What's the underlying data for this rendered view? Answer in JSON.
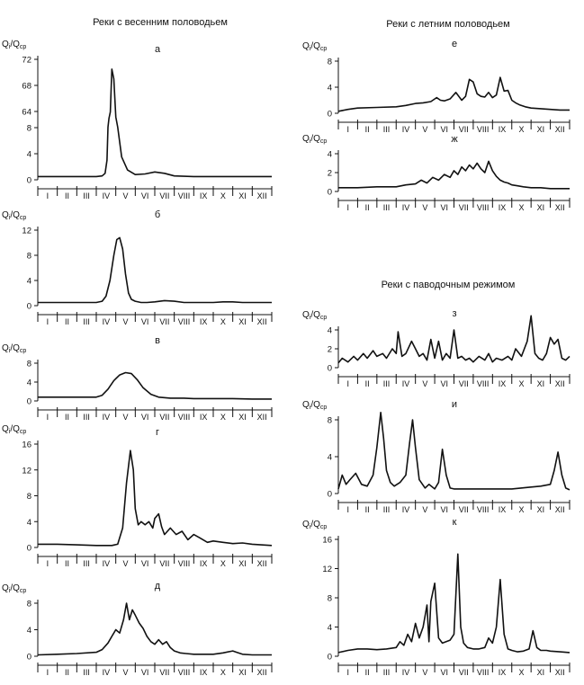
{
  "headers": {
    "left": "Реки с весенним половодьем",
    "right_top": "Реки с летним половодьем",
    "right_bottom": "Реки с паводочным режимом"
  },
  "ylabel": {
    "main": "Q",
    "sub1": "i",
    "slash": "/Q",
    "sub2": "ср"
  },
  "months": [
    "I",
    "II",
    "III",
    "IV",
    "V",
    "VI",
    "VII",
    "VIII",
    "IX",
    "X",
    "XI",
    "XII"
  ],
  "chart_data": [
    {
      "id": "a",
      "label": "а",
      "type": "line",
      "xlim": [
        0,
        12
      ],
      "ylim": [
        0,
        72
      ],
      "yticks": [
        0,
        4,
        8,
        64,
        68,
        72
      ],
      "broken_axis": true,
      "x": [
        0,
        1,
        2,
        3,
        3.3,
        3.45,
        3.55,
        3.6,
        3.65,
        3.72,
        3.8,
        3.9,
        4.0,
        4.1,
        4.3,
        4.6,
        5.0,
        5.5,
        6.0,
        6.5,
        7.0,
        8.0,
        9.0,
        10.0,
        11.0,
        12.0
      ],
      "y": [
        0.5,
        0.5,
        0.5,
        0.5,
        0.6,
        1.0,
        3.0,
        10.0,
        40.0,
        62.0,
        70.5,
        69.0,
        45.0,
        10.0,
        3.5,
        1.5,
        0.8,
        0.9,
        1.2,
        1.0,
        0.6,
        0.5,
        0.5,
        0.5,
        0.5,
        0.5
      ]
    },
    {
      "id": "b",
      "label": "б",
      "type": "line",
      "xlim": [
        0,
        12
      ],
      "ylim": [
        0,
        12
      ],
      "yticks": [
        0,
        4,
        8,
        12
      ],
      "x": [
        0,
        1,
        2,
        3,
        3.3,
        3.5,
        3.7,
        3.9,
        4.05,
        4.2,
        4.35,
        4.5,
        4.65,
        4.8,
        5.0,
        5.3,
        5.6,
        6.0,
        6.5,
        7.0,
        7.5,
        8.0,
        9.0,
        9.5,
        10.0,
        10.5,
        11.0,
        11.5,
        12.0
      ],
      "y": [
        0.5,
        0.5,
        0.5,
        0.5,
        0.7,
        1.5,
        4.0,
        8.0,
        10.5,
        10.8,
        9.0,
        5.0,
        2.0,
        1.0,
        0.7,
        0.5,
        0.5,
        0.6,
        0.8,
        0.7,
        0.5,
        0.5,
        0.5,
        0.6,
        0.6,
        0.5,
        0.5,
        0.5,
        0.5
      ]
    },
    {
      "id": "v",
      "label": "в",
      "type": "line",
      "xlim": [
        0,
        12
      ],
      "ylim": [
        0,
        8
      ],
      "yticks": [
        0,
        4,
        8
      ],
      "x": [
        0,
        1,
        2,
        3,
        3.3,
        3.6,
        3.9,
        4.2,
        4.5,
        4.8,
        5.1,
        5.4,
        5.8,
        6.2,
        6.8,
        7.5,
        8.0,
        9.0,
        10.0,
        11.0,
        12.0
      ],
      "y": [
        0.8,
        0.8,
        0.8,
        0.8,
        1.2,
        2.5,
        4.3,
        5.5,
        6.0,
        5.8,
        4.5,
        2.8,
        1.4,
        0.8,
        0.6,
        0.6,
        0.5,
        0.5,
        0.5,
        0.4,
        0.4
      ]
    },
    {
      "id": "g",
      "label": "г",
      "type": "line",
      "xlim": [
        0,
        12
      ],
      "ylim": [
        0,
        16
      ],
      "yticks": [
        0,
        4,
        8,
        12,
        16
      ],
      "x": [
        0,
        1,
        2,
        3,
        3.8,
        4.1,
        4.35,
        4.55,
        4.75,
        4.9,
        5.0,
        5.15,
        5.3,
        5.5,
        5.7,
        5.9,
        6.0,
        6.2,
        6.35,
        6.5,
        6.8,
        7.1,
        7.4,
        7.7,
        8.0,
        8.3,
        8.7,
        9.0,
        9.5,
        10.0,
        10.5,
        11.0,
        12.0
      ],
      "y": [
        0.5,
        0.5,
        0.4,
        0.3,
        0.3,
        0.5,
        3.0,
        10.0,
        15.0,
        12.0,
        6.0,
        3.5,
        4.0,
        3.5,
        4.0,
        3.0,
        4.5,
        5.2,
        3.2,
        2.0,
        3.0,
        2.0,
        2.5,
        1.2,
        2.0,
        1.5,
        0.8,
        1.0,
        0.8,
        0.6,
        0.7,
        0.5,
        0.3
      ]
    },
    {
      "id": "d",
      "label": "д",
      "type": "line",
      "xlim": [
        0,
        12
      ],
      "ylim": [
        0,
        8
      ],
      "yticks": [
        0,
        4,
        8
      ],
      "x": [
        0,
        1,
        2,
        3,
        3.3,
        3.6,
        3.8,
        4.0,
        4.2,
        4.4,
        4.55,
        4.7,
        4.85,
        5.0,
        5.2,
        5.4,
        5.6,
        5.8,
        6.0,
        6.2,
        6.4,
        6.6,
        6.8,
        7.0,
        7.3,
        7.6,
        8.0,
        9.0,
        9.5,
        10.0,
        10.2,
        10.5,
        11.0,
        12.0
      ],
      "y": [
        0.2,
        0.3,
        0.4,
        0.6,
        1.0,
        2.0,
        3.0,
        4.0,
        3.5,
        5.5,
        8.0,
        5.5,
        7.0,
        6.2,
        5.0,
        4.2,
        3.0,
        2.2,
        1.8,
        2.5,
        1.8,
        2.2,
        1.3,
        0.8,
        0.5,
        0.4,
        0.3,
        0.3,
        0.5,
        0.8,
        0.6,
        0.3,
        0.2,
        0.2
      ]
    },
    {
      "id": "e",
      "label": "е",
      "type": "line",
      "xlim": [
        0,
        12
      ],
      "ylim": [
        0,
        8
      ],
      "yticks": [
        0,
        4,
        8
      ],
      "x": [
        0,
        0.5,
        1,
        2,
        3,
        3.5,
        4,
        4.4,
        4.8,
        5.1,
        5.3,
        5.5,
        5.8,
        6.1,
        6.4,
        6.6,
        6.8,
        7.0,
        7.2,
        7.4,
        7.6,
        7.8,
        8.0,
        8.2,
        8.4,
        8.6,
        8.8,
        9.0,
        9.2,
        9.4,
        9.7,
        10.0,
        10.5,
        11.0,
        11.5,
        12.0
      ],
      "y": [
        0.3,
        0.6,
        0.8,
        0.9,
        1.0,
        1.2,
        1.5,
        1.6,
        1.8,
        2.4,
        2.0,
        1.9,
        2.2,
        3.2,
        2.0,
        2.6,
        5.2,
        4.8,
        3.0,
        2.6,
        2.5,
        3.2,
        2.4,
        2.8,
        5.5,
        3.4,
        3.5,
        2.0,
        1.6,
        1.3,
        1.0,
        0.8,
        0.7,
        0.6,
        0.5,
        0.5
      ]
    },
    {
      "id": "zh",
      "label": "ж",
      "type": "line",
      "xlim": [
        0,
        12
      ],
      "ylim": [
        0,
        4
      ],
      "yticks": [
        0,
        2,
        4
      ],
      "x": [
        0,
        1,
        2,
        3,
        3.5,
        4,
        4.3,
        4.6,
        4.9,
        5.2,
        5.5,
        5.8,
        6.0,
        6.2,
        6.4,
        6.6,
        6.8,
        7.0,
        7.2,
        7.4,
        7.6,
        7.8,
        8.0,
        8.2,
        8.4,
        8.6,
        8.8,
        9.0,
        9.3,
        9.6,
        10,
        10.5,
        11,
        11.5,
        12
      ],
      "y": [
        0.4,
        0.4,
        0.5,
        0.5,
        0.7,
        0.8,
        1.2,
        0.9,
        1.5,
        1.2,
        1.8,
        1.5,
        2.2,
        1.8,
        2.6,
        2.2,
        2.8,
        2.4,
        3.0,
        2.4,
        2.0,
        3.2,
        2.2,
        1.6,
        1.2,
        1.0,
        0.9,
        0.7,
        0.6,
        0.5,
        0.4,
        0.4,
        0.3,
        0.3,
        0.3
      ]
    },
    {
      "id": "z",
      "label": "з",
      "type": "line",
      "xlim": [
        0,
        12
      ],
      "ylim": [
        0,
        4
      ],
      "yticks": [
        0,
        2,
        4
      ],
      "x": [
        0,
        0.2,
        0.5,
        0.8,
        1.0,
        1.3,
        1.5,
        1.8,
        2.0,
        2.3,
        2.5,
        2.8,
        3.0,
        3.1,
        3.3,
        3.5,
        3.8,
        4.0,
        4.2,
        4.4,
        4.6,
        4.8,
        5.0,
        5.2,
        5.4,
        5.6,
        5.8,
        6.0,
        6.2,
        6.4,
        6.6,
        6.8,
        7.0,
        7.3,
        7.6,
        7.8,
        8.0,
        8.2,
        8.5,
        8.8,
        9.0,
        9.2,
        9.5,
        9.8,
        10.0,
        10.2,
        10.4,
        10.6,
        10.8,
        11.0,
        11.2,
        11.4,
        11.6,
        11.8,
        12.0
      ],
      "y": [
        0.5,
        1.0,
        0.6,
        1.2,
        0.8,
        1.5,
        1.0,
        1.8,
        1.2,
        1.5,
        1.0,
        2.0,
        1.5,
        3.8,
        1.2,
        1.5,
        2.8,
        2.0,
        1.2,
        1.5,
        0.8,
        3.0,
        1.0,
        2.8,
        0.8,
        1.5,
        1.0,
        4.0,
        1.0,
        1.2,
        0.8,
        1.0,
        0.6,
        1.2,
        0.8,
        1.5,
        0.6,
        1.0,
        0.8,
        1.2,
        0.8,
        2.0,
        1.2,
        2.8,
        5.5,
        1.5,
        1.0,
        0.8,
        1.5,
        3.2,
        2.5,
        3.0,
        1.0,
        0.8,
        1.2
      ]
    },
    {
      "id": "i",
      "label": "и",
      "type": "line",
      "xlim": [
        0,
        12
      ],
      "ylim": [
        0,
        8
      ],
      "yticks": [
        0,
        4,
        8
      ],
      "x": [
        0,
        0.2,
        0.4,
        0.6,
        0.9,
        1.2,
        1.5,
        1.8,
        2.0,
        2.2,
        2.35,
        2.5,
        2.7,
        2.9,
        3.2,
        3.5,
        3.7,
        3.85,
        4.0,
        4.2,
        4.5,
        4.7,
        5.0,
        5.2,
        5.4,
        5.6,
        5.8,
        6.0,
        6.5,
        7.0,
        8.0,
        9.0,
        10.0,
        10.5,
        11.0,
        11.2,
        11.4,
        11.6,
        11.8,
        12.0
      ],
      "y": [
        0.5,
        2.0,
        1.0,
        1.5,
        2.2,
        1.0,
        0.8,
        2.0,
        5.0,
        8.8,
        6.0,
        2.5,
        1.2,
        0.8,
        1.2,
        2.0,
        5.5,
        8.0,
        5.0,
        1.5,
        0.6,
        1.0,
        0.5,
        1.2,
        4.8,
        2.0,
        0.6,
        0.5,
        0.5,
        0.5,
        0.5,
        0.5,
        0.7,
        0.8,
        1.0,
        2.5,
        4.5,
        2.0,
        0.6,
        0.4
      ]
    },
    {
      "id": "k",
      "label": "к",
      "type": "line",
      "xlim": [
        0,
        12
      ],
      "ylim": [
        0,
        16
      ],
      "yticks": [
        0,
        4,
        8,
        12,
        16
      ],
      "x": [
        0,
        0.5,
        1,
        1.5,
        2,
        2.5,
        3,
        3.2,
        3.4,
        3.6,
        3.8,
        4.0,
        4.2,
        4.4,
        4.6,
        4.7,
        4.8,
        5.0,
        5.2,
        5.4,
        5.6,
        5.8,
        6.0,
        6.2,
        6.35,
        6.5,
        6.7,
        7.0,
        7.3,
        7.6,
        7.8,
        8.0,
        8.2,
        8.4,
        8.6,
        8.8,
        9.0,
        9.3,
        9.6,
        9.9,
        10.1,
        10.3,
        10.5,
        10.8,
        11.0,
        11.5,
        12.0
      ],
      "y": [
        0.5,
        0.8,
        1.0,
        1.0,
        0.9,
        1.0,
        1.2,
        2.0,
        1.5,
        3.0,
        2.0,
        4.5,
        2.5,
        4.0,
        7.0,
        2.0,
        7.5,
        10.0,
        2.5,
        1.8,
        2.0,
        2.2,
        3.0,
        14.0,
        4.0,
        1.8,
        1.2,
        1.0,
        1.0,
        1.2,
        2.5,
        1.8,
        4.0,
        10.5,
        3.0,
        1.0,
        0.8,
        0.6,
        0.7,
        1.0,
        3.5,
        1.2,
        0.8,
        0.8,
        0.7,
        0.6,
        0.5
      ]
    }
  ]
}
